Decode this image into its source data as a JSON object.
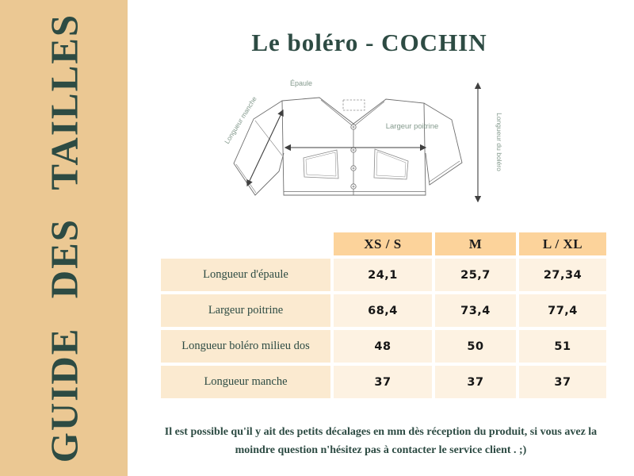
{
  "sidebar": {
    "title": "GUIDE DES TAILLES"
  },
  "header": {
    "title": "Le boléro - COCHIN"
  },
  "diagram": {
    "labels": {
      "epaule": "Épaule",
      "longueur_manche": "Longueur manche",
      "largeur_poitrine": "Largeur poitrine",
      "longueur_bolero": "Longueur du boléro"
    }
  },
  "table": {
    "columns": [
      "XS / S",
      "M",
      "L / XL"
    ],
    "rows": [
      {
        "label": "Longueur d'épaule",
        "values": [
          "24,1",
          "25,7",
          "27,34"
        ]
      },
      {
        "label": "Largeur poitrine",
        "values": [
          "68,4",
          "73,4",
          "77,4"
        ]
      },
      {
        "label": "Longueur boléro milieu dos",
        "values": [
          "48",
          "50",
          "51"
        ]
      },
      {
        "label": "Longueur manche",
        "values": [
          "37",
          "37",
          "37"
        ]
      }
    ]
  },
  "footer": {
    "line1": "Il est possible qu'il y ait des petits décalages en mm dès réception du produit, si vous avez la",
    "line2": "moindre question n'hésitez pas à contacter le service client . ;)"
  },
  "colors": {
    "sidebar_bg": "#ebc893",
    "accent_dark": "#2d4b43",
    "table_header_bg": "#fcd39b",
    "table_label_bg": "#fbead0",
    "table_value_bg": "#fdf2e2",
    "diagram_label": "#83998c"
  }
}
